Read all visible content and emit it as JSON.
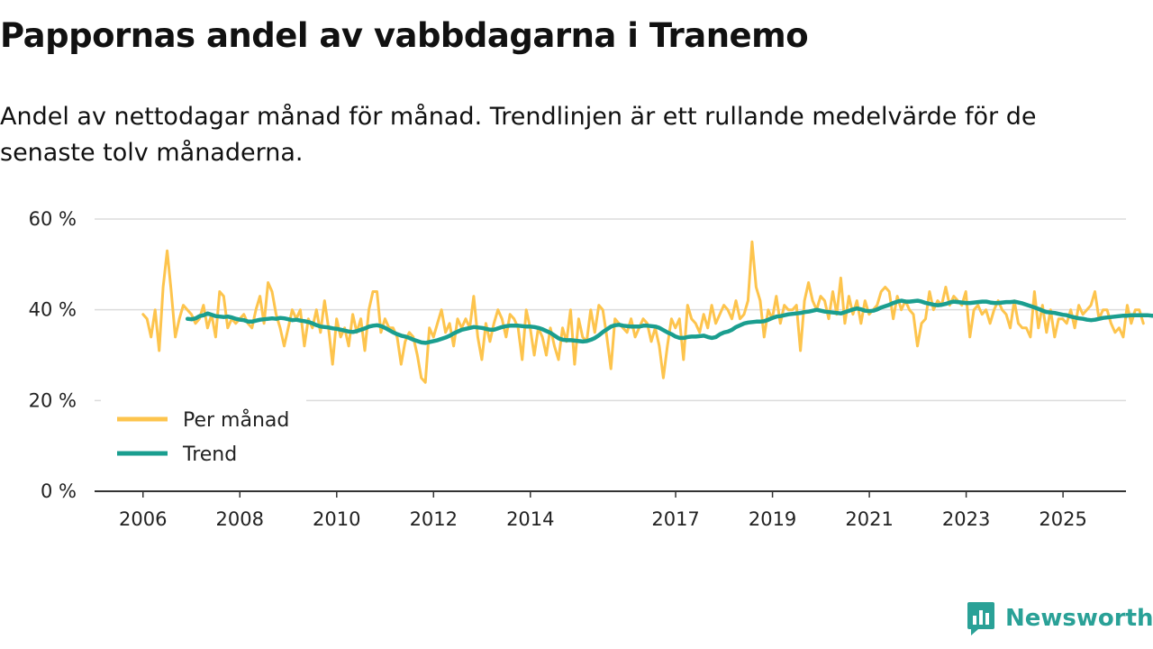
{
  "title": "Pappornas andel av vabbdagarna i Tranemo",
  "subtitle": "Andel av nettodagar månad för månad. Trendlinjen är ett rullande medelvärde för de senaste tolv månaderna.",
  "brand": {
    "name": "Newsworthy",
    "icon": "newsworthy-chart-icon",
    "color": "#2aa197"
  },
  "chart_data": {
    "type": "line",
    "title": "Pappornas andel av vabbdagarna i Tranemo",
    "xlabel": "",
    "ylabel": "",
    "ylim": [
      0,
      60
    ],
    "xlim": [
      2005.0,
      2026.3
    ],
    "grid": true,
    "legend_position": "bottom-left",
    "y_ticks": [
      0,
      20,
      40,
      60
    ],
    "y_tick_labels": [
      "0 %",
      "20 %",
      "40 %",
      "60 %"
    ],
    "x_ticks": [
      2006,
      2008,
      2010,
      2012,
      2014,
      2017,
      2019,
      2021,
      2023,
      2025
    ],
    "x_tick_labels": [
      "2006",
      "2008",
      "2010",
      "2012",
      "2014",
      "2017",
      "2019",
      "2021",
      "2023",
      "2025"
    ],
    "series": [
      {
        "name": "Per månad",
        "color": "#fdc44d",
        "x_start": 2006.0,
        "step": 0.0833,
        "values": [
          39,
          38,
          34,
          40,
          31,
          45,
          53,
          44,
          34,
          38,
          41,
          40,
          39,
          37,
          38,
          41,
          36,
          39,
          34,
          44,
          43,
          36,
          38,
          37,
          38,
          39,
          37,
          36,
          40,
          43,
          37,
          46,
          44,
          39,
          36,
          32,
          36,
          40,
          38,
          40,
          32,
          38,
          36,
          40,
          35,
          42,
          36,
          28,
          38,
          34,
          36,
          32,
          39,
          35,
          38,
          31,
          40,
          44,
          44,
          35,
          38,
          36,
          36,
          34,
          28,
          33,
          35,
          34,
          30,
          25,
          24,
          36,
          34,
          37,
          40,
          35,
          37,
          32,
          38,
          36,
          38,
          36,
          43,
          34,
          29,
          37,
          33,
          37,
          40,
          38,
          34,
          39,
          38,
          36,
          29,
          40,
          36,
          30,
          36,
          34,
          30,
          36,
          32,
          29,
          36,
          33,
          40,
          28,
          38,
          34,
          33,
          40,
          35,
          41,
          40,
          34,
          27,
          38,
          37,
          36,
          35,
          38,
          34,
          36,
          38,
          37,
          33,
          36,
          32,
          25,
          32,
          38,
          36,
          38,
          29,
          41,
          38,
          37,
          35,
          39,
          36,
          41,
          37,
          39,
          41,
          40,
          38,
          42,
          38,
          39,
          42,
          55,
          45,
          42,
          34,
          40,
          38,
          43,
          37,
          41,
          40,
          40,
          41,
          31,
          42,
          46,
          42,
          40,
          43,
          42,
          38,
          44,
          39,
          47,
          37,
          43,
          39,
          42,
          37,
          42,
          39,
          40,
          41,
          44,
          45,
          44,
          38,
          43,
          40,
          42,
          40,
          39,
          32,
          37,
          38,
          44,
          40,
          42,
          41,
          45,
          41,
          43,
          42,
          41,
          44,
          34,
          40,
          41,
          39,
          40,
          37,
          40,
          42,
          40,
          39,
          36,
          42,
          37,
          36,
          36,
          34,
          44,
          36,
          41,
          35,
          40,
          34,
          38,
          38,
          37,
          40,
          36,
          41,
          39,
          40,
          41,
          44,
          38,
          40,
          40,
          37,
          35,
          36,
          34,
          41,
          37,
          40,
          40,
          37
        ]
      },
      {
        "name": "Trend",
        "color": "#1a9e8f",
        "x_start": 2006.92,
        "step": 0.0833,
        "values": [
          38.0,
          37.9,
          38.1,
          38.6,
          38.8,
          39.2,
          38.9,
          38.6,
          38.5,
          38.4,
          38.5,
          38.3,
          38.0,
          37.8,
          37.7,
          37.4,
          37.4,
          37.6,
          37.8,
          37.9,
          38.0,
          38.1,
          38.0,
          38.2,
          38.1,
          37.9,
          37.7,
          37.8,
          37.6,
          37.5,
          37.3,
          37.0,
          36.6,
          36.3,
          36.2,
          36.1,
          35.9,
          35.8,
          35.6,
          35.4,
          35.2,
          35.1,
          35.3,
          35.6,
          35.9,
          36.3,
          36.5,
          36.6,
          36.4,
          36.0,
          35.5,
          35.0,
          34.6,
          34.3,
          34.1,
          33.8,
          33.4,
          33.1,
          32.8,
          32.7,
          32.9,
          33.1,
          33.3,
          33.6,
          33.9,
          34.3,
          34.8,
          35.2,
          35.6,
          35.8,
          36.0,
          36.2,
          36.1,
          36.0,
          35.8,
          35.6,
          35.6,
          35.9,
          36.2,
          36.4,
          36.5,
          36.5,
          36.5,
          36.4,
          36.3,
          36.3,
          36.2,
          36.0,
          35.7,
          35.3,
          34.9,
          34.3,
          33.7,
          33.4,
          33.3,
          33.3,
          33.2,
          33.1,
          33.0,
          33.1,
          33.4,
          33.8,
          34.4,
          35.1,
          35.7,
          36.3,
          36.6,
          36.7,
          36.5,
          36.4,
          36.3,
          36.3,
          36.3,
          36.5,
          36.5,
          36.4,
          36.3,
          36.0,
          35.5,
          35.0,
          34.6,
          34.1,
          33.8,
          33.8,
          34.0,
          34.1,
          34.1,
          34.2,
          34.3,
          34.0,
          33.8,
          34.0,
          34.6,
          35.0,
          35.2,
          35.6,
          36.2,
          36.6,
          37.0,
          37.2,
          37.3,
          37.4,
          37.4,
          37.5,
          37.8,
          38.2,
          38.5,
          38.6,
          38.8,
          39.0,
          39.1,
          39.2,
          39.3,
          39.5,
          39.6,
          39.8,
          40.0,
          39.8,
          39.6,
          39.5,
          39.4,
          39.3,
          39.2,
          39.5,
          39.8,
          40.1,
          40.3,
          40.1,
          39.8,
          39.7,
          39.8,
          40.1,
          40.5,
          40.8,
          41.1,
          41.5,
          41.8,
          42.0,
          41.8,
          41.8,
          41.9,
          42.0,
          41.8,
          41.5,
          41.3,
          41.1,
          41.0,
          41.1,
          41.3,
          41.6,
          41.8,
          41.7,
          41.6,
          41.5,
          41.5,
          41.6,
          41.7,
          41.8,
          41.8,
          41.6,
          41.5,
          41.5,
          41.6,
          41.7,
          41.7,
          41.8,
          41.6,
          41.4,
          41.1,
          40.8,
          40.5,
          40.2,
          39.8,
          39.5,
          39.4,
          39.3,
          39.1,
          38.9,
          38.8,
          38.5,
          38.3,
          38.1,
          38.0,
          37.8,
          37.7,
          37.8,
          38.0,
          38.2,
          38.3,
          38.4,
          38.5,
          38.6,
          38.7,
          38.7,
          38.8,
          38.8,
          38.8,
          38.8,
          38.8,
          38.7,
          38.7
        ]
      }
    ]
  }
}
